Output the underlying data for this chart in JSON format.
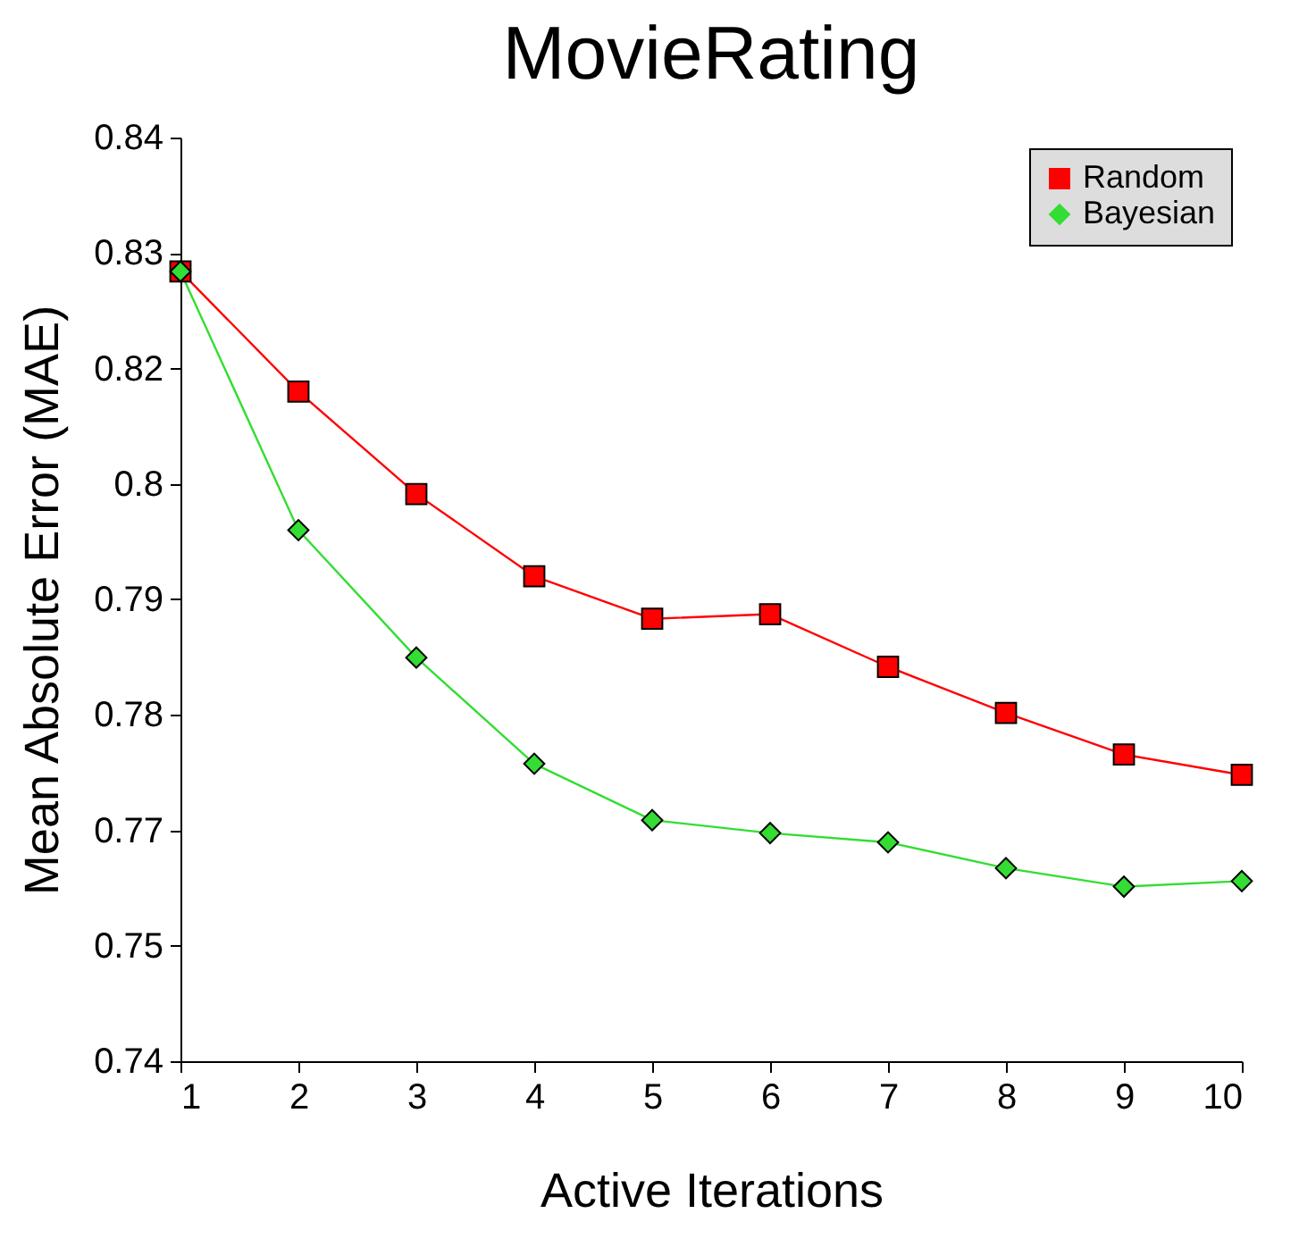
{
  "chart_data": {
    "type": "line",
    "title": "MovieRating",
    "xlabel": "Active Iterations",
    "ylabel": "Mean Absolute Error (MAE)",
    "x": [
      1,
      2,
      3,
      4,
      5,
      6,
      7,
      8,
      9,
      10
    ],
    "series": [
      {
        "name": "Random",
        "color": "#ff0000",
        "marker": "square",
        "values": [
          0.8255,
          0.8125,
          0.8014,
          0.7925,
          0.7879,
          0.7884,
          0.7827,
          0.7777,
          0.7732,
          0.771
        ]
      },
      {
        "name": "Bayesian",
        "color": "#33dd33",
        "marker": "diamond",
        "values": [
          0.8255,
          0.7975,
          0.7837,
          0.7722,
          0.7661,
          0.7647,
          0.7637,
          0.7609,
          0.7589,
          0.7595
        ]
      }
    ],
    "xlim": [
      1,
      10
    ],
    "xticks": [
      1,
      2,
      3,
      4,
      5,
      6,
      7,
      8,
      9,
      10
    ],
    "ylim": [
      0.74,
      0.84
    ],
    "yticks": [
      {
        "value": 0.74,
        "label": "0.74"
      },
      {
        "value": 0.7525,
        "label": "0.75"
      },
      {
        "value": 0.765,
        "label": "0.77"
      },
      {
        "value": 0.7775,
        "label": "0.78"
      },
      {
        "value": 0.79,
        "label": "0.79"
      },
      {
        "value": 0.8025,
        "label": "0.8"
      },
      {
        "value": 0.815,
        "label": "0.82"
      },
      {
        "value": 0.8275,
        "label": "0.83"
      },
      {
        "value": 0.84,
        "label": "0.84"
      }
    ],
    "grid": false,
    "legend": "top right",
    "line_style": "solid"
  }
}
